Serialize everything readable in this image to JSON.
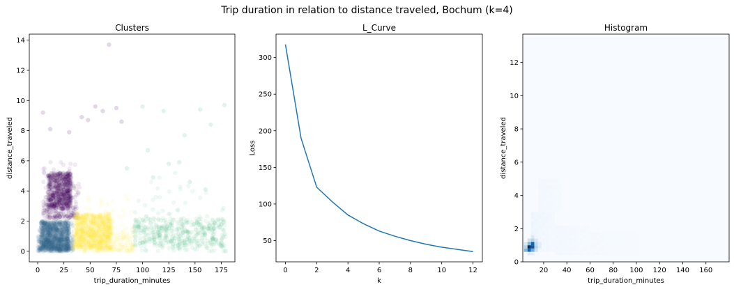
{
  "figure": {
    "suptitle": "Trip duration in relation to distance traveled, Bochum (k=4)"
  },
  "chart_data": [
    {
      "type": "scatter",
      "title": "Clusters",
      "xlabel": "trip_duration_minutes",
      "ylabel": "distance_traveled",
      "xlim": [
        -8,
        188
      ],
      "ylim": [
        -0.7,
        14.4
      ],
      "xticks": [
        "0",
        "25",
        "50",
        "75",
        "100",
        "125",
        "150",
        "175"
      ],
      "yticks": [
        "0",
        "2",
        "4",
        "6",
        "8",
        "10",
        "12",
        "14"
      ],
      "alpha": 0.08,
      "clusters": [
        {
          "color": "#440154",
          "x_range": [
            5,
            40
          ],
          "y_range": [
            2.2,
            6.2
          ],
          "core": {
            "x": [
              10,
              32
            ],
            "y": [
              2.8,
              5.2
            ]
          },
          "count": 900
        },
        {
          "color": "#31688e",
          "x_range": [
            0,
            34
          ],
          "y_range": [
            0,
            2.3
          ],
          "core": {
            "x": [
              3,
              30
            ],
            "y": [
              0.1,
              2.0
            ]
          },
          "count": 1300
        },
        {
          "color": "#fde725",
          "x_range": [
            33,
            92
          ],
          "y_range": [
            0,
            4.2
          ],
          "core": {
            "x": [
              36,
              70
            ],
            "y": [
              0.2,
              2.5
            ]
          },
          "count": 1000
        },
        {
          "color": "#35b779",
          "x_range": [
            90,
            180
          ],
          "y_range": [
            0,
            6.0
          ],
          "core": {
            "x": [
              92,
              180
            ],
            "y": [
              0.3,
              2.2
            ]
          },
          "count": 500
        }
      ],
      "outliers": [
        {
          "x": 68,
          "y": 13.7,
          "color": "#440154"
        },
        {
          "x": 178,
          "y": 9.7,
          "color": "#35b779"
        },
        {
          "x": 5,
          "y": 9.2,
          "color": "#440154"
        },
        {
          "x": 55,
          "y": 9.6,
          "color": "#440154"
        },
        {
          "x": 62,
          "y": 9.3,
          "color": "#440154"
        },
        {
          "x": 75,
          "y": 9.5,
          "color": "#440154"
        },
        {
          "x": 48,
          "y": 8.7,
          "color": "#440154"
        },
        {
          "x": 80,
          "y": 8.6,
          "color": "#440154"
        },
        {
          "x": 165,
          "y": 8.4,
          "color": "#35b779"
        },
        {
          "x": 120,
          "y": 9.3,
          "color": "#35b779"
        },
        {
          "x": 140,
          "y": 7.7,
          "color": "#35b779"
        },
        {
          "x": 155,
          "y": 9.4,
          "color": "#35b779"
        },
        {
          "x": 100,
          "y": 9.6,
          "color": "#35b779"
        },
        {
          "x": 12,
          "y": 8.1,
          "color": "#440154"
        },
        {
          "x": 30,
          "y": 7.9,
          "color": "#440154"
        },
        {
          "x": 42,
          "y": 8.9,
          "color": "#440154"
        },
        {
          "x": 135,
          "y": 5.9,
          "color": "#35b779"
        },
        {
          "x": 105,
          "y": 6.7,
          "color": "#35b779"
        },
        {
          "x": 125,
          "y": 5.8,
          "color": "#35b779"
        },
        {
          "x": 160,
          "y": 4.1,
          "color": "#35b779"
        },
        {
          "x": 145,
          "y": 4.6,
          "color": "#35b779"
        },
        {
          "x": 110,
          "y": 4.9,
          "color": "#35b779"
        },
        {
          "x": 85,
          "y": 5.5,
          "color": "#35b779"
        }
      ]
    },
    {
      "type": "line",
      "title": "L_Curve",
      "xlabel": "k",
      "ylabel": "Loss",
      "x": [
        0,
        1,
        2,
        3,
        4,
        5,
        6,
        7,
        8,
        9,
        10,
        11,
        12
      ],
      "series": [
        {
          "values": [
            318,
            190,
            123,
            103,
            85,
            73,
            63,
            56,
            50,
            45,
            41,
            38,
            35
          ],
          "color": "#1f77b4"
        }
      ],
      "xlim": [
        -0.6,
        12.6
      ],
      "ylim": [
        21,
        332
      ],
      "xticks": [
        "0",
        "2",
        "4",
        "6",
        "8",
        "10",
        "12"
      ],
      "yticks": [
        "50",
        "100",
        "150",
        "200",
        "250",
        "300"
      ]
    },
    {
      "type": "heatmap",
      "title": "Histogram",
      "xlabel": "trip_duration_minutes",
      "ylabel": "distance_traveled",
      "xlim": [
        2,
        180
      ],
      "ylim": [
        0,
        13.7
      ],
      "xticks": [
        "20",
        "40",
        "60",
        "80",
        "100",
        "120",
        "140",
        "160"
      ],
      "yticks": [
        "0",
        "2",
        "4",
        "6",
        "8",
        "10",
        "12"
      ],
      "colormap": "Blues",
      "bins": [
        {
          "x": 6,
          "y": 0.8,
          "v": 1.0
        },
        {
          "x": 6,
          "y": 0.6,
          "v": 0.8
        },
        {
          "x": 9,
          "y": 0.8,
          "v": 0.85
        },
        {
          "x": 9,
          "y": 1.0,
          "v": 0.8
        },
        {
          "x": 6,
          "y": 1.0,
          "v": 0.45
        },
        {
          "x": 3,
          "y": 0.6,
          "v": 0.45
        },
        {
          "x": 3,
          "y": 0.8,
          "v": 0.3
        },
        {
          "x": 9,
          "y": 0.6,
          "v": 0.5
        },
        {
          "x": 12,
          "y": 0.8,
          "v": 0.3
        },
        {
          "x": 12,
          "y": 1.0,
          "v": 0.25
        },
        {
          "x": 9,
          "y": 1.2,
          "v": 0.3
        },
        {
          "x": 6,
          "y": 1.2,
          "v": 0.2
        },
        {
          "x": 12,
          "y": 1.2,
          "v": 0.15
        },
        {
          "x": 12,
          "y": 0.6,
          "v": 0.2
        },
        {
          "x": 3,
          "y": 1.0,
          "v": 0.15
        },
        {
          "x": 15,
          "y": 0.8,
          "v": 0.12
        },
        {
          "x": 15,
          "y": 1.0,
          "v": 0.1
        },
        {
          "x": 9,
          "y": 1.4,
          "v": 0.15
        },
        {
          "x": 6,
          "y": 0.4,
          "v": 0.15
        },
        {
          "x": 9,
          "y": 0.4,
          "v": 0.1
        }
      ],
      "haze": [
        {
          "x": [
            9,
            30
          ],
          "y": [
            0.6,
            3.0
          ],
          "v": 0.05
        },
        {
          "x": [
            15,
            35
          ],
          "y": [
            3.0,
            5.0
          ],
          "v": 0.03
        },
        {
          "x": [
            30,
            60
          ],
          "y": [
            0.4,
            2.0
          ],
          "v": 0.03
        },
        {
          "x": [
            60,
            100
          ],
          "y": [
            0.4,
            1.6
          ],
          "v": 0.015
        }
      ]
    }
  ]
}
